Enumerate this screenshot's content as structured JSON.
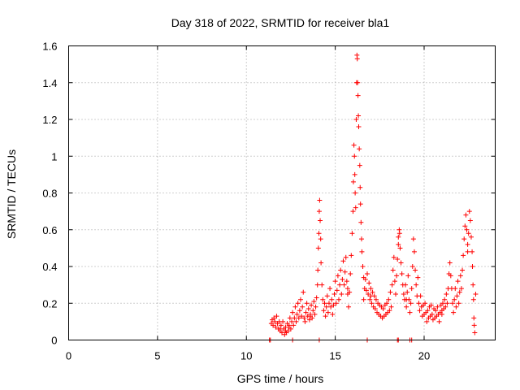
{
  "chart_data": {
    "type": "scatter",
    "title": "Day 318 of 2022, SRMTID for receiver bla1",
    "xlabel": "GPS time / hours",
    "ylabel": "SRMTID / TECUs",
    "xlim": [
      0,
      24
    ],
    "ylim": [
      0,
      1.6
    ],
    "x_ticks": [
      0,
      5,
      10,
      15,
      20
    ],
    "x_tick_labels": [
      "0",
      "5",
      "10",
      "15",
      "20"
    ],
    "y_ticks": [
      0,
      0.2,
      0.4,
      0.6,
      0.8,
      1.0,
      1.2,
      1.4,
      1.6
    ],
    "y_tick_labels": [
      "0",
      "0.2",
      "0.4",
      "0.6",
      "0.8",
      "1",
      "1.2",
      "1.4",
      "1.6"
    ],
    "grid": true,
    "marker": "+",
    "color": "#ff0000",
    "series": [
      {
        "name": "SRMTID",
        "points": [
          [
            11.35,
            0.0
          ],
          [
            11.4,
            0.09
          ],
          [
            11.45,
            0.11
          ],
          [
            11.5,
            0.08
          ],
          [
            11.55,
            0.12
          ],
          [
            11.6,
            0.1
          ],
          [
            11.65,
            0.07
          ],
          [
            11.7,
            0.13
          ],
          [
            11.75,
            0.09
          ],
          [
            11.8,
            0.06
          ],
          [
            11.85,
            0.1
          ],
          [
            11.9,
            0.05
          ],
          [
            11.95,
            0.08
          ],
          [
            12.0,
            0.04
          ],
          [
            12.05,
            0.1
          ],
          [
            12.1,
            0.06
          ],
          [
            12.15,
            0.03
          ],
          [
            12.2,
            0.07
          ],
          [
            12.25,
            0.04
          ],
          [
            12.3,
            0.09
          ],
          [
            12.35,
            0.05
          ],
          [
            12.4,
            0.08
          ],
          [
            12.45,
            0.12
          ],
          [
            12.5,
            0.06
          ],
          [
            12.55,
            0.1
          ],
          [
            12.6,
            0.15
          ],
          [
            12.65,
            0.08
          ],
          [
            12.7,
            0.12
          ],
          [
            12.75,
            0.18
          ],
          [
            12.8,
            0.1
          ],
          [
            12.85,
            0.14
          ],
          [
            12.9,
            0.2
          ],
          [
            12.95,
            0.12
          ],
          [
            13.0,
            0.16
          ],
          [
            13.05,
            0.22
          ],
          [
            13.1,
            0.13
          ],
          [
            13.15,
            0.18
          ],
          [
            13.2,
            0.26
          ],
          [
            13.25,
            0.12
          ],
          [
            13.3,
            0.1
          ],
          [
            13.35,
            0.15
          ],
          [
            13.4,
            0.2
          ],
          [
            13.45,
            0.13
          ],
          [
            13.5,
            0.17
          ],
          [
            13.55,
            0.11
          ],
          [
            13.6,
            0.14
          ],
          [
            13.65,
            0.19
          ],
          [
            13.7,
            0.12
          ],
          [
            13.75,
            0.16
          ],
          [
            13.8,
            0.21
          ],
          [
            13.85,
            0.14
          ],
          [
            13.9,
            0.18
          ],
          [
            13.95,
            0.23
          ],
          [
            14.0,
            0.3
          ],
          [
            14.02,
            0.38
          ],
          [
            14.05,
            0.5
          ],
          [
            14.08,
            0.58
          ],
          [
            14.1,
            0.7
          ],
          [
            14.12,
            0.76
          ],
          [
            14.15,
            0.65
          ],
          [
            14.18,
            0.55
          ],
          [
            14.2,
            0.42
          ],
          [
            14.25,
            0.3
          ],
          [
            14.3,
            0.22
          ],
          [
            14.35,
            0.16
          ],
          [
            14.4,
            0.2
          ],
          [
            14.45,
            0.13
          ],
          [
            14.5,
            0.18
          ],
          [
            14.55,
            0.24
          ],
          [
            14.6,
            0.15
          ],
          [
            14.65,
            0.2
          ],
          [
            14.7,
            0.28
          ],
          [
            14.75,
            0.18
          ],
          [
            14.8,
            0.22
          ],
          [
            14.85,
            0.14
          ],
          [
            14.9,
            0.19
          ],
          [
            14.95,
            0.25
          ],
          [
            15.0,
            0.32
          ],
          [
            15.05,
            0.2
          ],
          [
            15.1,
            0.27
          ],
          [
            15.15,
            0.35
          ],
          [
            15.2,
            0.22
          ],
          [
            15.25,
            0.3
          ],
          [
            15.3,
            0.38
          ],
          [
            15.35,
            0.25
          ],
          [
            15.4,
            0.33
          ],
          [
            15.45,
            0.43
          ],
          [
            15.5,
            0.3
          ],
          [
            15.55,
            0.37
          ],
          [
            15.6,
            0.45
          ],
          [
            15.65,
            0.32
          ],
          [
            15.7,
            0.25
          ],
          [
            15.75,
            0.18
          ],
          [
            15.8,
            0.26
          ],
          [
            15.85,
            0.36
          ],
          [
            15.9,
            0.46
          ],
          [
            15.95,
            0.58
          ],
          [
            16.0,
            0.7
          ],
          [
            16.02,
            0.86
          ],
          [
            16.05,
            1.06
          ],
          [
            16.08,
            1.0
          ],
          [
            16.1,
            0.9
          ],
          [
            16.12,
            0.8
          ],
          [
            16.15,
            0.72
          ],
          [
            16.18,
            1.2
          ],
          [
            16.2,
            1.4
          ],
          [
            16.22,
            1.55
          ],
          [
            16.24,
            1.53
          ],
          [
            16.26,
            1.4
          ],
          [
            16.28,
            1.33
          ],
          [
            16.3,
            1.22
          ],
          [
            16.32,
            1.16
          ],
          [
            16.35,
            1.04
          ],
          [
            16.38,
            0.95
          ],
          [
            16.4,
            0.83
          ],
          [
            16.42,
            0.74
          ],
          [
            16.45,
            0.64
          ],
          [
            16.48,
            0.55
          ],
          [
            16.5,
            0.48
          ],
          [
            16.55,
            0.4
          ],
          [
            16.6,
            0.34
          ],
          [
            16.65,
            0.28
          ],
          [
            16.7,
            0.33
          ],
          [
            16.75,
            0.27
          ],
          [
            16.8,
            0.36
          ],
          [
            16.85,
            0.25
          ],
          [
            16.9,
            0.31
          ],
          [
            16.95,
            0.22
          ],
          [
            17.0,
            0.28
          ],
          [
            17.05,
            0.2
          ],
          [
            17.1,
            0.26
          ],
          [
            17.15,
            0.18
          ],
          [
            17.2,
            0.24
          ],
          [
            17.25,
            0.17
          ],
          [
            17.3,
            0.22
          ],
          [
            17.35,
            0.15
          ],
          [
            17.4,
            0.2
          ],
          [
            17.45,
            0.14
          ],
          [
            17.5,
            0.19
          ],
          [
            17.55,
            0.13
          ],
          [
            17.6,
            0.18
          ],
          [
            17.65,
            0.12
          ],
          [
            17.7,
            0.17
          ],
          [
            17.75,
            0.13
          ],
          [
            17.8,
            0.19
          ],
          [
            17.85,
            0.14
          ],
          [
            17.9,
            0.2
          ],
          [
            17.95,
            0.15
          ],
          [
            18.0,
            0.22
          ],
          [
            18.05,
            0.16
          ],
          [
            18.1,
            0.26
          ],
          [
            18.15,
            0.18
          ],
          [
            18.2,
            0.3
          ],
          [
            18.25,
            0.38
          ],
          [
            18.3,
            0.45
          ],
          [
            18.35,
            0.32
          ],
          [
            18.4,
            0.25
          ],
          [
            18.45,
            0.35
          ],
          [
            18.5,
            0.44
          ],
          [
            18.55,
            0.52
          ],
          [
            18.6,
            0.6
          ],
          [
            18.62,
            0.58
          ],
          [
            18.65,
            0.5
          ],
          [
            18.7,
            0.42
          ],
          [
            18.75,
            0.36
          ],
          [
            18.8,
            0.3
          ],
          [
            18.85,
            0.25
          ],
          [
            18.9,
            0.22
          ],
          [
            18.95,
            0.3
          ],
          [
            19.0,
            0.18
          ],
          [
            19.05,
            0.26
          ],
          [
            19.1,
            0.35
          ],
          [
            19.15,
            0.22
          ],
          [
            19.2,
            0.15
          ],
          [
            19.25,
            0.2
          ],
          [
            19.3,
            0.28
          ],
          [
            19.35,
            0.4
          ],
          [
            19.4,
            0.55
          ],
          [
            19.45,
            0.48
          ],
          [
            19.5,
            0.38
          ],
          [
            19.55,
            0.3
          ],
          [
            19.6,
            0.24
          ],
          [
            19.65,
            0.34
          ],
          [
            19.7,
            0.2
          ],
          [
            19.75,
            0.16
          ],
          [
            19.8,
            0.24
          ],
          [
            19.85,
            0.18
          ],
          [
            19.9,
            0.13
          ],
          [
            19.95,
            0.19
          ],
          [
            20.0,
            0.14
          ],
          [
            20.05,
            0.2
          ],
          [
            20.1,
            0.15
          ],
          [
            20.15,
            0.1
          ],
          [
            20.2,
            0.16
          ],
          [
            20.25,
            0.12
          ],
          [
            20.3,
            0.18
          ],
          [
            20.35,
            0.13
          ],
          [
            20.4,
            0.19
          ],
          [
            20.45,
            0.14
          ],
          [
            20.5,
            0.11
          ],
          [
            20.55,
            0.17
          ],
          [
            20.6,
            0.12
          ],
          [
            20.65,
            0.16
          ],
          [
            20.7,
            0.13
          ],
          [
            20.75,
            0.18
          ],
          [
            20.8,
            0.14
          ],
          [
            20.85,
            0.1
          ],
          [
            20.9,
            0.15
          ],
          [
            20.95,
            0.19
          ],
          [
            21.0,
            0.14
          ],
          [
            21.05,
            0.2
          ],
          [
            21.1,
            0.17
          ],
          [
            21.15,
            0.22
          ],
          [
            21.2,
            0.18
          ],
          [
            21.25,
            0.25
          ],
          [
            21.3,
            0.2
          ],
          [
            21.35,
            0.28
          ],
          [
            21.4,
            0.36
          ],
          [
            21.45,
            0.42
          ],
          [
            21.5,
            0.35
          ],
          [
            21.55,
            0.28
          ],
          [
            21.6,
            0.2
          ],
          [
            21.65,
            0.15
          ],
          [
            21.7,
            0.22
          ],
          [
            21.75,
            0.28
          ],
          [
            21.8,
            0.18
          ],
          [
            21.85,
            0.24
          ],
          [
            21.9,
            0.32
          ],
          [
            21.95,
            0.2
          ],
          [
            22.0,
            0.26
          ],
          [
            22.05,
            0.35
          ],
          [
            22.1,
            0.28
          ],
          [
            22.15,
            0.38
          ],
          [
            22.2,
            0.46
          ],
          [
            22.25,
            0.55
          ],
          [
            22.3,
            0.62
          ],
          [
            22.35,
            0.68
          ],
          [
            22.4,
            0.6
          ],
          [
            22.45,
            0.52
          ],
          [
            22.5,
            0.58
          ],
          [
            22.55,
            0.7
          ],
          [
            22.6,
            0.65
          ],
          [
            22.65,
            0.56
          ],
          [
            22.7,
            0.48
          ],
          [
            22.72,
            0.4
          ],
          [
            22.75,
            0.3
          ],
          [
            22.78,
            0.22
          ],
          [
            22.8,
            0.12
          ],
          [
            22.82,
            0.08
          ],
          [
            22.85,
            0.04
          ],
          [
            11.9,
            0.06
          ],
          [
            12.2,
            0.05
          ],
          [
            12.4,
            0.07
          ],
          [
            13.6,
            0.13
          ],
          [
            15.7,
            0.28
          ],
          [
            16.6,
            0.22
          ],
          [
            17.0,
            0.24
          ],
          [
            18.55,
            0.56
          ],
          [
            19.0,
            0.22
          ],
          [
            21.0,
            0.16
          ],
          [
            22.45,
            0.48
          ],
          [
            22.9,
            0.25
          ],
          [
            11.3,
            0.0
          ],
          [
            12.6,
            0.0
          ],
          [
            14.1,
            0.0
          ],
          [
            16.8,
            0.0
          ],
          [
            18.5,
            0.0
          ],
          [
            18.55,
            0.0
          ],
          [
            19.2,
            0.0
          ],
          [
            19.3,
            0.0
          ]
        ]
      }
    ]
  }
}
